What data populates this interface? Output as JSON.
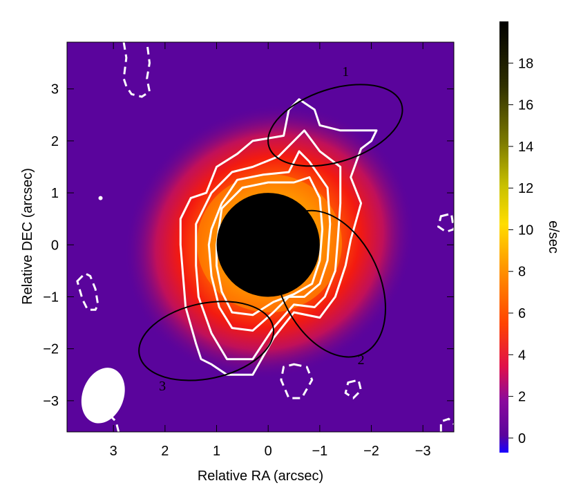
{
  "chart_data": {
    "type": "heatmap",
    "xlabel": "Relative RA (arcsec)",
    "ylabel": "Relative DEC (arcsec)",
    "xlim": [
      3.9,
      -3.6
    ],
    "ylim": [
      -3.6,
      3.9
    ],
    "x_ticks": [
      3,
      2,
      1,
      0,
      -1,
      -2,
      -3
    ],
    "x_tick_labels": [
      "3",
      "2",
      "1",
      "0",
      "−1",
      "−2",
      "−3"
    ],
    "y_ticks": [
      3,
      2,
      1,
      0,
      -1,
      -2,
      -3
    ],
    "y_tick_labels": [
      "3",
      "2",
      "1",
      "0",
      "−1",
      "−2",
      "−3"
    ],
    "colorbar": {
      "label": "e/sec",
      "range": [
        -0.7,
        20
      ],
      "ticks": [
        0,
        2,
        4,
        6,
        8,
        10,
        12,
        14,
        16,
        18
      ],
      "tick_labels": [
        "0",
        "2",
        "4",
        "6",
        "8",
        "10",
        "12",
        "14",
        "16",
        "18"
      ]
    },
    "background_color": "#5a049c",
    "occulting_mask": {
      "center": [
        0.0,
        0.0
      ],
      "radius": 1.0,
      "color": "#000000"
    },
    "regions": [
      {
        "label": "1",
        "center": [
          -1.3,
          2.3
        ],
        "width": 2.7,
        "height": 1.4,
        "angle_deg": -18
      },
      {
        "label": "2",
        "center": [
          -1.2,
          -0.75
        ],
        "width": 3.0,
        "height": 1.9,
        "angle_deg": 65
      },
      {
        "label": "3",
        "center": [
          1.2,
          -1.85
        ],
        "width": 2.65,
        "height": 1.45,
        "angle_deg": -12
      }
    ],
    "beam": {
      "center": [
        3.2,
        -2.9
      ],
      "width": 0.8,
      "height": 1.1,
      "angle_deg": 20,
      "color": "#ffffff"
    },
    "contours_positive": [
      [
        [
          1.7,
          0.5
        ],
        [
          1.5,
          0.9
        ],
        [
          1.2,
          1.0
        ],
        [
          1.0,
          1.5
        ],
        [
          0.6,
          1.75
        ],
        [
          0.3,
          2.0
        ],
        [
          -0.3,
          2.1
        ],
        [
          -0.4,
          2.6
        ],
        [
          -0.6,
          2.8
        ],
        [
          -0.9,
          2.6
        ],
        [
          -1.0,
          2.3
        ],
        [
          -1.4,
          2.2
        ],
        [
          -1.9,
          2.2
        ],
        [
          -2.1,
          2.2
        ],
        [
          -2.0,
          2.0
        ],
        [
          -1.8,
          1.85
        ],
        [
          -1.6,
          1.3
        ],
        [
          -1.8,
          0.8
        ],
        [
          -1.6,
          0.1
        ],
        [
          -1.5,
          -0.4
        ],
        [
          -1.3,
          -1.0
        ],
        [
          -1.0,
          -1.4
        ],
        [
          -0.5,
          -1.3
        ],
        [
          -0.1,
          -1.8
        ],
        [
          0.3,
          -2.5
        ],
        [
          0.8,
          -2.5
        ],
        [
          1.1,
          -2.3
        ],
        [
          1.3,
          -2.2
        ],
        [
          1.4,
          -1.9
        ],
        [
          1.6,
          -1.2
        ],
        [
          1.65,
          -0.6
        ],
        [
          1.7,
          0.0
        ],
        [
          1.7,
          0.5
        ]
      ],
      [
        [
          1.4,
          0.4
        ],
        [
          1.1,
          1.0
        ],
        [
          0.7,
          1.4
        ],
        [
          0.3,
          1.5
        ],
        [
          -0.2,
          1.7
        ],
        [
          -0.5,
          2.0
        ],
        [
          -0.7,
          2.2
        ],
        [
          -1.0,
          1.8
        ],
        [
          -1.4,
          1.5
        ],
        [
          -1.4,
          0.8
        ],
        [
          -1.35,
          0.1
        ],
        [
          -1.3,
          -0.5
        ],
        [
          -1.1,
          -1.0
        ],
        [
          -0.9,
          -1.2
        ],
        [
          -0.5,
          -1.15
        ],
        [
          -0.1,
          -1.6
        ],
        [
          0.3,
          -2.2
        ],
        [
          0.8,
          -2.2
        ],
        [
          1.1,
          -1.7
        ],
        [
          1.35,
          -1.0
        ],
        [
          1.4,
          -0.4
        ],
        [
          1.4,
          0.4
        ]
      ],
      [
        [
          1.1,
          0.3
        ],
        [
          0.9,
          0.8
        ],
        [
          0.6,
          1.25
        ],
        [
          0.1,
          1.35
        ],
        [
          -0.4,
          1.4
        ],
        [
          -0.6,
          1.8
        ],
        [
          -0.8,
          1.6
        ],
        [
          -1.15,
          1.1
        ],
        [
          -1.2,
          0.4
        ],
        [
          -1.15,
          -0.3
        ],
        [
          -1.0,
          -0.75
        ],
        [
          -0.7,
          -1.0
        ],
        [
          -0.4,
          -1.0
        ],
        [
          -0.1,
          -1.3
        ],
        [
          0.3,
          -1.65
        ],
        [
          0.7,
          -1.6
        ],
        [
          0.95,
          -1.2
        ],
        [
          1.1,
          -0.6
        ],
        [
          1.15,
          0.0
        ],
        [
          1.1,
          0.3
        ]
      ],
      [
        [
          1.0,
          0.0
        ],
        [
          0.9,
          0.7
        ],
        [
          0.5,
          1.1
        ],
        [
          0.0,
          1.2
        ],
        [
          -0.5,
          1.2
        ],
        [
          -0.8,
          1.3
        ],
        [
          -1.0,
          0.9
        ],
        [
          -1.05,
          0.3
        ],
        [
          -1.0,
          -0.3
        ],
        [
          -0.85,
          -0.75
        ],
        [
          -0.5,
          -0.95
        ],
        [
          -0.1,
          -1.1
        ],
        [
          0.3,
          -1.35
        ],
        [
          0.7,
          -1.3
        ],
        [
          0.9,
          -0.9
        ],
        [
          1.0,
          -0.4
        ],
        [
          1.0,
          0.0
        ]
      ]
    ],
    "contours_negative": [
      [
        [
          2.8,
          3.9
        ],
        [
          2.75,
          3.6
        ],
        [
          2.8,
          3.2
        ],
        [
          2.75,
          3.05
        ],
        [
          2.65,
          2.9
        ],
        [
          2.45,
          2.85
        ],
        [
          2.3,
          2.95
        ],
        [
          2.35,
          3.2
        ],
        [
          2.3,
          3.5
        ],
        [
          2.35,
          3.9
        ]
      ],
      [
        [
          3.7,
          -0.7
        ],
        [
          3.55,
          -0.55
        ],
        [
          3.45,
          -0.6
        ],
        [
          3.35,
          -0.85
        ],
        [
          3.3,
          -1.15
        ],
        [
          3.35,
          -1.25
        ],
        [
          3.5,
          -1.25
        ],
        [
          3.6,
          -1.05
        ],
        [
          3.7,
          -0.7
        ]
      ],
      [
        [
          -0.5,
          -2.3
        ],
        [
          -0.75,
          -2.35
        ],
        [
          -0.85,
          -2.6
        ],
        [
          -0.65,
          -2.95
        ],
        [
          -0.4,
          -2.95
        ],
        [
          -0.25,
          -2.6
        ],
        [
          -0.3,
          -2.35
        ],
        [
          -0.5,
          -2.3
        ]
      ],
      [
        [
          -1.55,
          -2.65
        ],
        [
          -1.75,
          -2.6
        ],
        [
          -1.8,
          -2.8
        ],
        [
          -1.65,
          -2.95
        ],
        [
          -1.5,
          -2.85
        ],
        [
          -1.55,
          -2.65
        ]
      ],
      [
        [
          -3.35,
          0.55
        ],
        [
          -3.55,
          0.6
        ],
        [
          -3.6,
          0.3
        ],
        [
          -3.45,
          0.25
        ],
        [
          -3.3,
          0.35
        ],
        [
          -3.35,
          0.55
        ]
      ],
      [
        [
          -3.35,
          -3.6
        ],
        [
          -3.35,
          -3.4
        ],
        [
          -3.5,
          -3.35
        ],
        [
          -3.6,
          -3.45
        ]
      ],
      [
        [
          2.9,
          -3.6
        ],
        [
          2.95,
          -3.4
        ],
        [
          3.05,
          -3.3
        ]
      ]
    ],
    "positive_dot": {
      "center": [
        3.25,
        0.9
      ]
    }
  }
}
